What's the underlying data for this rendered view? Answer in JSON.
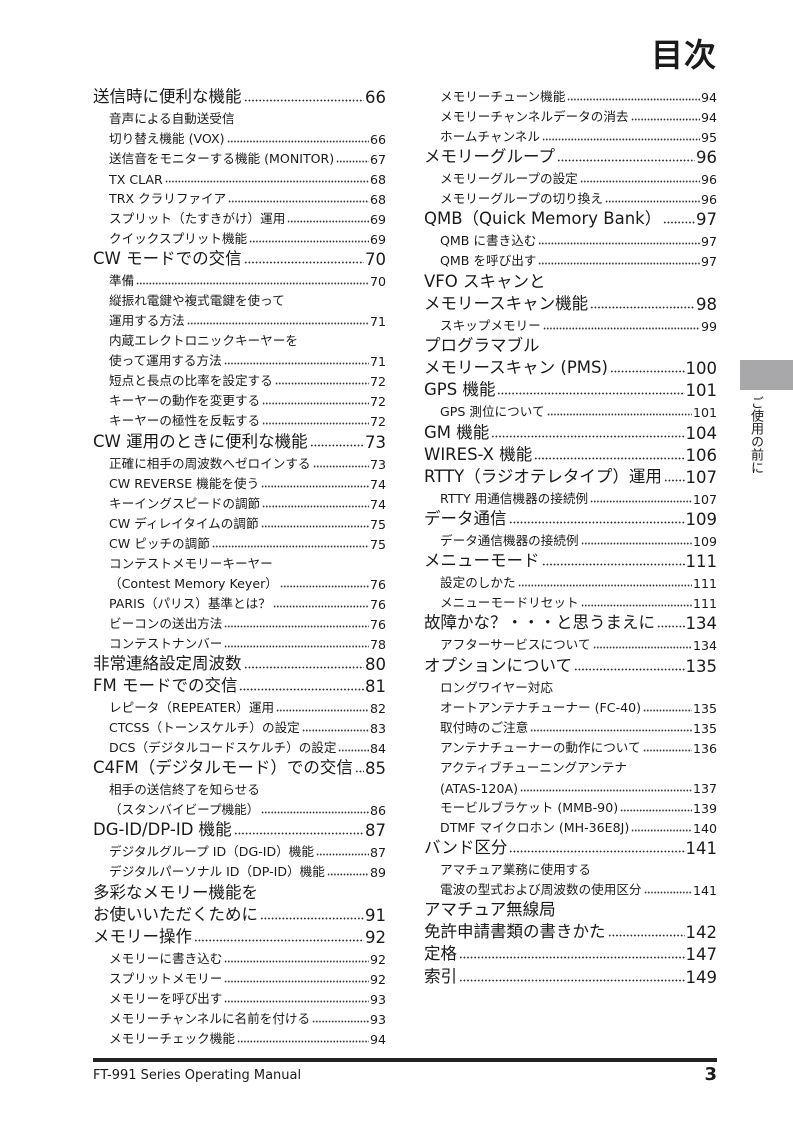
{
  "title": "目次",
  "left_entries": [
    {
      "level": "main",
      "label": "送信時に便利な機能",
      "page": "66"
    },
    {
      "level": "sub",
      "label": "音声による自動送受信",
      "page": ""
    },
    {
      "level": "sub",
      "label": "切り替え機能 (VOX)",
      "page": "66"
    },
    {
      "level": "sub",
      "label": "送信音をモニターする機能 (MONITOR)",
      "page": "67"
    },
    {
      "level": "sub",
      "label": "TX CLAR",
      "page": "68"
    },
    {
      "level": "sub",
      "label": "TRX クラリファイア",
      "page": "68"
    },
    {
      "level": "sub",
      "label": "スプリット（たすきがけ）運用",
      "page": "69"
    },
    {
      "level": "sub",
      "label": "クイックスプリット機能",
      "page": "69"
    },
    {
      "level": "main",
      "label": "CW モードでの交信",
      "page": "70"
    },
    {
      "level": "sub",
      "label": "準備",
      "page": "70"
    },
    {
      "level": "sub",
      "label": "縦振れ電鍵や複式電鍵を使って",
      "page": ""
    },
    {
      "level": "sub",
      "label": "運用する方法",
      "page": "71"
    },
    {
      "level": "sub",
      "label": "内蔵エレクトロニックキーヤーを",
      "page": ""
    },
    {
      "level": "sub",
      "label": "使って運用する方法",
      "page": "71"
    },
    {
      "level": "sub",
      "label": "短点と長点の比率を設定する",
      "page": "72"
    },
    {
      "level": "sub",
      "label": "キーヤーの動作を変更する",
      "page": "72"
    },
    {
      "level": "sub",
      "label": "キーヤーの極性を反転する",
      "page": "72"
    },
    {
      "level": "main",
      "label": "CW 運用のときに便利な機能",
      "page": "73"
    },
    {
      "level": "sub",
      "label": "正確に相手の周波数へゼロインする",
      "page": "73"
    },
    {
      "level": "sub",
      "label": "CW REVERSE 機能を使う",
      "page": "74"
    },
    {
      "level": "sub",
      "label": "キーイングスピードの調節",
      "page": "74"
    },
    {
      "level": "sub",
      "label": "CW ディレイタイムの調節",
      "page": "75"
    },
    {
      "level": "sub",
      "label": "CW ピッチの調節",
      "page": "75"
    },
    {
      "level": "sub",
      "label": "コンテストメモリーキーヤー",
      "page": ""
    },
    {
      "level": "sub",
      "label": "（Contest Memory Keyer）",
      "page": "76"
    },
    {
      "level": "sub",
      "label": "PARIS（パリス）基準とは？",
      "page": "76"
    },
    {
      "level": "sub",
      "label": "ビーコンの送出方法",
      "page": "76"
    },
    {
      "level": "sub",
      "label": "コンテストナンバー",
      "page": "78"
    },
    {
      "level": "main",
      "label": "非常連絡設定周波数",
      "page": "80"
    },
    {
      "level": "main",
      "label": "FM モードでの交信",
      "page": "81"
    },
    {
      "level": "sub",
      "label": "レピータ（REPEATER）運用",
      "page": "82"
    },
    {
      "level": "sub",
      "label": "CTCSS（トーンスケルチ）の設定",
      "page": "83"
    },
    {
      "level": "sub",
      "label": "DCS（デジタルコードスケルチ）の設定",
      "page": "84"
    },
    {
      "level": "main",
      "label": "C4FM（デジタルモード）での交信",
      "page": "85"
    },
    {
      "level": "sub",
      "label": "相手の送信終了を知らせる",
      "page": ""
    },
    {
      "level": "sub",
      "label": "（スタンバイビープ機能）",
      "page": "86"
    },
    {
      "level": "main",
      "label": "DG-ID/DP-ID 機能",
      "page": "87"
    },
    {
      "level": "sub",
      "label": "デジタルグループ ID（DG-ID）機能",
      "page": "87"
    },
    {
      "level": "sub",
      "label": "デジタルパーソナル ID（DP-ID）機能",
      "page": "89"
    },
    {
      "level": "main",
      "label": "多彩なメモリー機能を",
      "page": ""
    },
    {
      "level": "main",
      "label": "お使いいただくために",
      "page": "91"
    },
    {
      "level": "main",
      "label": "メモリー操作",
      "page": "92"
    },
    {
      "level": "sub",
      "label": "メモリーに書き込む",
      "page": "92"
    },
    {
      "level": "sub",
      "label": "スプリットメモリー",
      "page": "92"
    },
    {
      "level": "sub",
      "label": "メモリーを呼び出す",
      "page": "93"
    },
    {
      "level": "sub",
      "label": "メモリーチャンネルに名前を付ける",
      "page": "93"
    },
    {
      "level": "sub",
      "label": "メモリーチェック機能",
      "page": "94"
    }
  ],
  "right_entries": [
    {
      "level": "sub",
      "label": "メモリーチューン機能",
      "page": "94"
    },
    {
      "level": "sub",
      "label": "メモリーチャンネルデータの消去",
      "page": "94"
    },
    {
      "level": "sub",
      "label": "ホームチャンネル",
      "page": "95"
    },
    {
      "level": "main",
      "label": "メモリーグループ",
      "page": "96"
    },
    {
      "level": "sub",
      "label": "メモリーグループの設定",
      "page": "96"
    },
    {
      "level": "sub",
      "label": "メモリーグループの切り換え",
      "page": "96"
    },
    {
      "level": "main",
      "label": "QMB（Quick Memory Bank）",
      "page": "97"
    },
    {
      "level": "sub",
      "label": "QMB に書き込む",
      "page": "97"
    },
    {
      "level": "sub",
      "label": "QMB を呼び出す",
      "page": "97"
    },
    {
      "level": "main",
      "label": "VFO スキャンと",
      "page": ""
    },
    {
      "level": "main",
      "label": "メモリースキャン機能",
      "page": "98"
    },
    {
      "level": "sub",
      "label": "スキップメモリー",
      "page": "99"
    },
    {
      "level": "main",
      "label": "プログラマブル",
      "page": ""
    },
    {
      "level": "main",
      "label": "メモリースキャン (PMS)",
      "page": "100"
    },
    {
      "level": "main",
      "label": "GPS 機能",
      "page": "101"
    },
    {
      "level": "sub",
      "label": "GPS 測位について",
      "page": "101"
    },
    {
      "level": "main",
      "label": "GM 機能",
      "page": "104"
    },
    {
      "level": "main",
      "label": "WIRES-X 機能",
      "page": "106"
    },
    {
      "level": "main",
      "label": "RTTY（ラジオテレタイプ）運用",
      "page": "107"
    },
    {
      "level": "sub",
      "label": "RTTY 用通信機器の接続例",
      "page": "107"
    },
    {
      "level": "main",
      "label": "データ通信",
      "page": "109"
    },
    {
      "level": "sub",
      "label": "データ通信機器の接続例",
      "page": "109"
    },
    {
      "level": "main",
      "label": "メニューモード",
      "page": "111"
    },
    {
      "level": "sub",
      "label": "設定のしかた",
      "page": "111"
    },
    {
      "level": "sub",
      "label": "メニューモードリセット",
      "page": "111"
    },
    {
      "level": "main",
      "label": "故障かな？・・・と思うまえに",
      "page": "134"
    },
    {
      "level": "sub",
      "label": "アフターサービスについて",
      "page": "134"
    },
    {
      "level": "main",
      "label": "オプションについて",
      "page": "135"
    },
    {
      "level": "sub",
      "label": "ロングワイヤー対応",
      "page": ""
    },
    {
      "level": "sub",
      "label": "オートアンテナチューナー (FC-40)",
      "page": "135"
    },
    {
      "level": "sub",
      "label": "取付時のご注意",
      "page": "135"
    },
    {
      "level": "sub",
      "label": "アンテナチューナーの動作について",
      "page": "136"
    },
    {
      "level": "sub",
      "label": "アクティブチューニングアンテナ",
      "page": ""
    },
    {
      "level": "sub",
      "label": "(ATAS-120A)",
      "page": "137"
    },
    {
      "level": "sub",
      "label": "モービルブラケット (MMB-90)",
      "page": "139"
    },
    {
      "level": "sub",
      "label": "DTMF マイクロホン (MH-36E8J)",
      "page": "140"
    },
    {
      "level": "main",
      "label": "バンド区分",
      "page": "141"
    },
    {
      "level": "sub",
      "label": "アマチュア業務に使用する",
      "page": ""
    },
    {
      "level": "sub",
      "label": "電波の型式および周波数の使用区分",
      "page": "141"
    },
    {
      "level": "main",
      "label": "アマチュア無線局",
      "page": ""
    },
    {
      "level": "main",
      "label": "免許申請書類の書きかた",
      "page": "142"
    },
    {
      "level": "main",
      "label": "定格",
      "page": "147"
    },
    {
      "level": "main",
      "label": "索引",
      "page": "149"
    }
  ],
  "side_tab": {
    "label": "ご使用の前に",
    "color": "#a8a8aa"
  },
  "footer": {
    "manual_title": "FT-991 Series Operating Manual",
    "page_number": "3"
  }
}
